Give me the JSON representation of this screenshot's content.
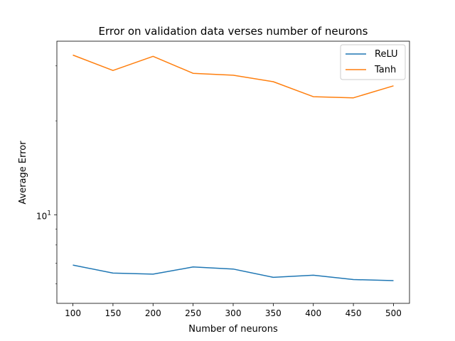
{
  "chart_data": {
    "type": "line",
    "title": "Error on validation data verses number of neurons",
    "xlabel": "Number of neurons",
    "ylabel": "Average Error",
    "y_scale": "log",
    "x_ticks": [
      "100",
      "150",
      "200",
      "250",
      "300",
      "350",
      "400",
      "450",
      "500"
    ],
    "y_tick_major": {
      "value": 10,
      "base": "10",
      "exp": "1"
    },
    "x": [
      100,
      150,
      200,
      250,
      300,
      350,
      400,
      450,
      500
    ],
    "xlim": [
      80,
      520
    ],
    "ylim": [
      5.2,
      36
    ],
    "legend_position": "top-right",
    "grid": false,
    "series": [
      {
        "name": "ReLU",
        "color": "#1f77b4",
        "values": [
          6.9,
          6.5,
          6.45,
          6.8,
          6.7,
          6.3,
          6.4,
          6.2,
          6.15
        ]
      },
      {
        "name": "Tanh",
        "color": "#ff7f0e",
        "values": [
          32.5,
          29.0,
          32.2,
          28.4,
          28.0,
          26.7,
          23.9,
          23.7,
          25.9
        ]
      }
    ]
  }
}
